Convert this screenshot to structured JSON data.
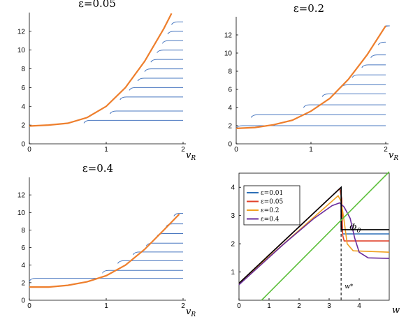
{
  "chart_data": [
    {
      "type": "line",
      "title": "ε=0.05",
      "xlabel": "v",
      "xlabel_sub": "R",
      "xlim": [
        0,
        2
      ],
      "ylim": [
        0,
        14
      ],
      "x_ticks": [
        "0",
        "1",
        "2"
      ],
      "y_ticks": [
        "0",
        "2",
        "4",
        "6",
        "8",
        "10",
        "12"
      ],
      "curve": {
        "name": "",
        "color": "#ee7f2d",
        "x": [
          0,
          0.25,
          0.5,
          0.75,
          1.0,
          1.25,
          1.5,
          1.75,
          1.85
        ],
        "y": [
          1.9,
          2.0,
          2.2,
          2.8,
          4.0,
          6.0,
          8.8,
          12.3,
          13.9
        ]
      },
      "branches": {
        "color": "#4a78c0",
        "start": [
          0.71,
          1.05,
          1.18,
          1.3,
          1.41,
          1.5,
          1.58,
          1.66,
          1.73,
          1.8,
          1.85
        ],
        "y": [
          2.5,
          3.5,
          5.0,
          6.0,
          7.0,
          8.0,
          9.0,
          10.0,
          11.0,
          12.0,
          13.0
        ],
        "x_end": 2.0
      }
    },
    {
      "type": "line",
      "title": "ε=0.2",
      "xlabel": "v",
      "xlabel_sub": "R",
      "xlim": [
        0,
        2
      ],
      "ylim": [
        0,
        14
      ],
      "x_ticks": [
        "0",
        "1",
        "2"
      ],
      "y_ticks": [
        "0",
        "2",
        "4",
        "6",
        "8",
        "10",
        "12"
      ],
      "curve": {
        "name": "",
        "color": "#ee7f2d",
        "x": [
          0,
          0.25,
          0.5,
          0.75,
          1.0,
          1.25,
          1.5,
          1.75,
          2.0
        ],
        "y": [
          1.7,
          1.8,
          2.1,
          2.6,
          3.6,
          5.0,
          7.1,
          9.8,
          13.0
        ]
      },
      "branches": {
        "color": "#4a78c0",
        "start": [
          0,
          0.2,
          0.9,
          1.15,
          1.4,
          1.55,
          1.68,
          1.8,
          1.9,
          1.97
        ],
        "y": [
          2.0,
          3.2,
          4.3,
          5.5,
          6.5,
          7.6,
          8.7,
          9.8,
          11.2,
          13.0
        ],
        "x_end": 2.0
      }
    },
    {
      "type": "line",
      "title": "ε=0.4",
      "xlabel": "v",
      "xlabel_sub": "R",
      "xlim": [
        0,
        2
      ],
      "ylim": [
        0,
        14
      ],
      "x_ticks": [
        "0",
        "1",
        "2"
      ],
      "y_ticks": [
        "0",
        "2",
        "4",
        "6",
        "8",
        "10",
        "12"
      ],
      "curve": {
        "name": "",
        "color": "#ee7f2d",
        "x": [
          0,
          0.25,
          0.5,
          0.75,
          1.0,
          1.25,
          1.5,
          1.75,
          1.95
        ],
        "y": [
          1.5,
          1.5,
          1.7,
          2.1,
          2.8,
          4.0,
          5.8,
          8.0,
          9.8
        ]
      },
      "branches": {
        "color": "#4a78c0",
        "start": [
          0,
          0.95,
          1.15,
          1.35,
          1.52,
          1.66,
          1.78,
          1.88
        ],
        "y": [
          2.5,
          3.4,
          4.5,
          5.5,
          6.5,
          7.6,
          8.7,
          9.9
        ],
        "x_end": 2.0
      }
    },
    {
      "type": "line",
      "xlabel": "w",
      "xlim": [
        0,
        5
      ],
      "ylim": [
        0,
        4.5
      ],
      "x_ticks": [
        "0",
        "1",
        "2",
        "3",
        "4"
      ],
      "y_ticks": [
        "1",
        "2",
        "3",
        "4"
      ],
      "annotations": {
        "w_star_label": "w*",
        "w_star": 3.4,
        "phi_label": "Φ",
        "phi_sub": "0"
      },
      "legend": {
        "position": "top-left",
        "entries": [
          "ε=0.01",
          "ε=0.05",
          "ε=0.2",
          "ε=0.4"
        ]
      },
      "series": [
        {
          "name": "ε=0.01",
          "color": "#2c6fb7",
          "x": [
            0,
            3.4,
            3.4,
            3.45,
            5
          ],
          "y": [
            0.6,
            4.0,
            2.7,
            2.35,
            2.35
          ]
        },
        {
          "name": "ε=0.05",
          "color": "#e0402a",
          "x": [
            0,
            3.35,
            3.42,
            3.45,
            3.5,
            5
          ],
          "y": [
            0.6,
            3.95,
            3.6,
            2.3,
            2.1,
            2.1
          ]
        },
        {
          "name": "ε=0.2",
          "color": "#f0a020",
          "x": [
            0,
            3.3,
            3.4,
            3.5,
            3.6,
            3.8,
            5
          ],
          "y": [
            0.6,
            3.7,
            3.5,
            2.8,
            2.0,
            1.75,
            1.7
          ]
        },
        {
          "name": "ε=0.4",
          "color": "#6a2c9c",
          "x": [
            0,
            1.5,
            2.5,
            3.1,
            3.35,
            3.5,
            3.7,
            3.85,
            4.0,
            4.3,
            5
          ],
          "y": [
            0.55,
            2.0,
            2.9,
            3.35,
            3.45,
            3.3,
            2.9,
            2.2,
            1.7,
            1.5,
            1.48
          ]
        },
        {
          "name": "",
          "color": "#000000",
          "x": [
            0,
            3.4,
            3.4,
            5
          ],
          "y": [
            0.6,
            4.0,
            2.5,
            2.5
          ]
        },
        {
          "name": "",
          "color": "#5bbf3a",
          "x": [
            0.75,
            5
          ],
          "y": [
            0,
            4.55
          ]
        }
      ]
    }
  ]
}
